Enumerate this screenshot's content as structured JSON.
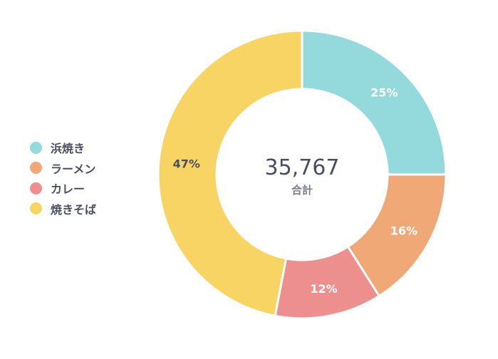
{
  "chart_data": {
    "type": "pie",
    "variant": "donut",
    "categories": [
      "浜焼き",
      "ラーメン",
      "カレー",
      "焼きそば"
    ],
    "values": [
      25,
      16,
      12,
      47
    ],
    "value_labels": [
      "25%",
      "16%",
      "12%",
      "47%"
    ],
    "colors": [
      "#94d9db",
      "#f0a877",
      "#ee8f8f",
      "#f7d463"
    ],
    "label_dark": [
      false,
      false,
      false,
      true
    ],
    "center_total": "35,767",
    "center_caption": "合計",
    "legend_position": "left"
  }
}
